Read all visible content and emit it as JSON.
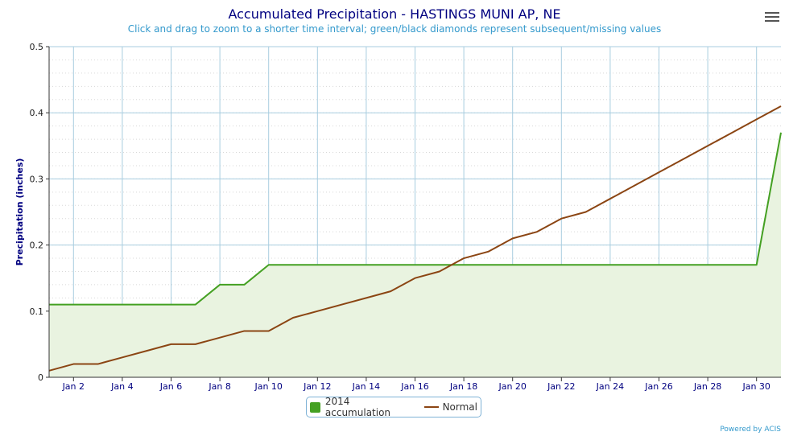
{
  "header": {
    "title": "Accumulated Precipitation - HASTINGS MUNI AP, NE",
    "subtitle": "Click and drag to zoom to a shorter time interval; green/black diamonds represent subsequent/missing values"
  },
  "menu_icon": "hamburger-menu-icon",
  "credit": "Powered by ACIS",
  "chart_data": {
    "type": "line",
    "title": "Accumulated Precipitation - HASTINGS MUNI AP, NE",
    "subtitle": "Click and drag to zoom to a shorter time interval; green/black diamonds represent subsequent/missing values",
    "xlabel": "",
    "ylabel": "Precipitation (inches)",
    "ylim": [
      0,
      0.5
    ],
    "xlim": [
      1,
      31
    ],
    "yticks": [
      0,
      0.1,
      0.2,
      0.3,
      0.4,
      0.5
    ],
    "ytick_labels": [
      "0",
      "0.1",
      "0.2",
      "0.3",
      "0.4",
      "0.5"
    ],
    "xticks": [
      2,
      4,
      6,
      8,
      10,
      12,
      14,
      16,
      18,
      20,
      22,
      24,
      26,
      28,
      30
    ],
    "xtick_labels": [
      "Jan 2",
      "Jan 4",
      "Jan 6",
      "Jan 8",
      "Jan 10",
      "Jan 12",
      "Jan 14",
      "Jan 16",
      "Jan 18",
      "Jan 20",
      "Jan 22",
      "Jan 24",
      "Jan 26",
      "Jan 28",
      "Jan 30"
    ],
    "x": [
      1,
      2,
      3,
      4,
      5,
      6,
      7,
      8,
      9,
      10,
      11,
      12,
      13,
      14,
      15,
      16,
      17,
      18,
      19,
      20,
      21,
      22,
      23,
      24,
      25,
      26,
      27,
      28,
      29,
      30,
      31
    ],
    "series": [
      {
        "name": "2014 accumulation",
        "color": "#44a022",
        "fill": "#e9f3e0",
        "values": [
          0.11,
          0.11,
          0.11,
          0.11,
          0.11,
          0.11,
          0.11,
          0.14,
          0.14,
          0.17,
          0.17,
          0.17,
          0.17,
          0.17,
          0.17,
          0.17,
          0.17,
          0.17,
          0.17,
          0.17,
          0.17,
          0.17,
          0.17,
          0.17,
          0.17,
          0.17,
          0.17,
          0.17,
          0.17,
          0.17,
          0.37
        ]
      },
      {
        "name": "Normal",
        "color": "#8b4513",
        "values": [
          0.01,
          0.02,
          0.02,
          0.03,
          0.04,
          0.05,
          0.05,
          0.06,
          0.07,
          0.07,
          0.09,
          0.1,
          0.11,
          0.12,
          0.13,
          0.15,
          0.16,
          0.18,
          0.19,
          0.21,
          0.22,
          0.24,
          0.25,
          0.27,
          0.29,
          0.31,
          0.33,
          0.35,
          0.37,
          0.39,
          0.41
        ]
      }
    ],
    "grid": true,
    "legend_position": "bottom-center"
  }
}
